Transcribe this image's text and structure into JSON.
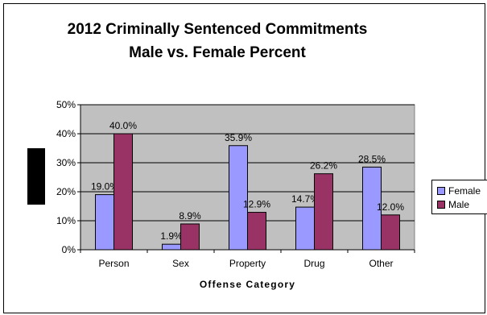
{
  "chart_data": {
    "type": "bar",
    "title_line1": "2012 Criminally Sentenced Commitments",
    "title_line2": "Male vs. Female Percent",
    "xlabel": "Offense Category",
    "ylabel": "",
    "categories": [
      "Person",
      "Sex",
      "Property",
      "Drug",
      "Other"
    ],
    "series": [
      {
        "name": "Female",
        "color": "#9999ff",
        "values": [
          19.0,
          1.9,
          35.9,
          14.7,
          28.5
        ],
        "labels": [
          "19.0%",
          "1.9%",
          "35.9%",
          "14.7%",
          "28.5%"
        ]
      },
      {
        "name": "Male",
        "color": "#993366",
        "values": [
          40.0,
          8.9,
          12.9,
          26.2,
          12.0
        ],
        "labels": [
          "40.0%",
          "8.9%",
          "12.9%",
          "26.2%",
          "12.0%"
        ]
      }
    ],
    "ylim": [
      0,
      50
    ],
    "yticks": [
      0,
      10,
      20,
      30,
      40,
      50
    ],
    "ytick_labels": [
      "0%",
      "10%",
      "20%",
      "30%",
      "40%",
      "50%"
    ],
    "grid": true,
    "plot_background": "#c0c0c0",
    "legend_position": "right"
  }
}
